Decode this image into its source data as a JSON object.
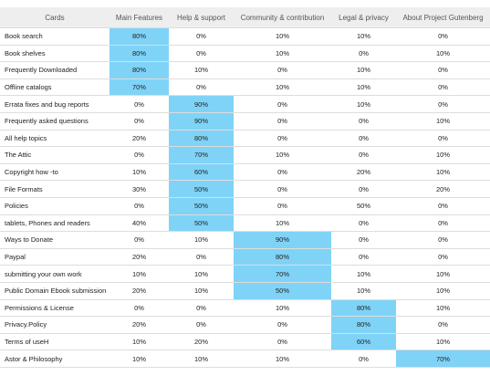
{
  "highlight_color": "#7fd3f7",
  "header_bg": "#eeeeee",
  "columns": [
    "Cards",
    "Main Features",
    "Help & support",
    "Community & contribution",
    "Legal & privacy",
    "About Project Gutenberg"
  ],
  "rows": [
    {
      "card": "Book search",
      "values": [
        "80%",
        "0%",
        "10%",
        "10%",
        "0%"
      ],
      "highlight": 0
    },
    {
      "card": "Book shelves",
      "values": [
        "80%",
        "0%",
        "10%",
        "0%",
        "10%"
      ],
      "highlight": 0
    },
    {
      "card": "Frequently Downloaded",
      "values": [
        "80%",
        "10%",
        "0%",
        "10%",
        "0%"
      ],
      "highlight": 0
    },
    {
      "card": "Offline catalogs",
      "values": [
        "70%",
        "0%",
        "10%",
        "10%",
        "0%"
      ],
      "highlight": 0
    },
    {
      "card": "Errata fixes and bug reports",
      "values": [
        "0%",
        "90%",
        "0%",
        "10%",
        "0%"
      ],
      "highlight": 1
    },
    {
      "card": "Frequently asked questions",
      "values": [
        "0%",
        "90%",
        "0%",
        "0%",
        "10%"
      ],
      "highlight": 1
    },
    {
      "card": "All help topics",
      "values": [
        "20%",
        "80%",
        "0%",
        "0%",
        "0%"
      ],
      "highlight": 1
    },
    {
      "card": "The Attic",
      "values": [
        "0%",
        "70%",
        "10%",
        "0%",
        "10%"
      ],
      "highlight": 1
    },
    {
      "card": "Copyright how -to",
      "values": [
        "10%",
        "60%",
        "0%",
        "20%",
        "10%"
      ],
      "highlight": 1
    },
    {
      "card": "File Formats",
      "values": [
        "30%",
        "50%",
        "0%",
        "0%",
        "20%"
      ],
      "highlight": 1
    },
    {
      "card": "Policies",
      "values": [
        "0%",
        "50%",
        "0%",
        "50%",
        "0%"
      ],
      "highlight": 1
    },
    {
      "card": "tablets, Phones and readers",
      "values": [
        "40%",
        "50%",
        "10%",
        "0%",
        "0%"
      ],
      "highlight": 1
    },
    {
      "card": "Ways to Donate",
      "values": [
        "0%",
        "10%",
        "90%",
        "0%",
        "0%"
      ],
      "highlight": 2
    },
    {
      "card": "Paypal",
      "values": [
        "20%",
        "0%",
        "80%",
        "0%",
        "0%"
      ],
      "highlight": 2
    },
    {
      "card": "submitting your own work",
      "values": [
        "10%",
        "10%",
        "70%",
        "10%",
        "10%"
      ],
      "highlight": 2
    },
    {
      "card": "Public Domain Ebook submission",
      "values": [
        "20%",
        "10%",
        "50%",
        "10%",
        "10%"
      ],
      "highlight": 2
    },
    {
      "card": "Permissions & License",
      "values": [
        "0%",
        "0%",
        "10%",
        "80%",
        "10%"
      ],
      "highlight": 3
    },
    {
      "card": "Privacy.Policy",
      "values": [
        "20%",
        "0%",
        "0%",
        "80%",
        "0%"
      ],
      "highlight": 3
    },
    {
      "card": "Terms of useH",
      "values": [
        "10%",
        "20%",
        "0%",
        "60%",
        "10%"
      ],
      "highlight": 3
    },
    {
      "card": "Astor & Philosophy",
      "values": [
        "10%",
        "10%",
        "10%",
        "0%",
        "70%"
      ],
      "highlight": 4
    }
  ]
}
